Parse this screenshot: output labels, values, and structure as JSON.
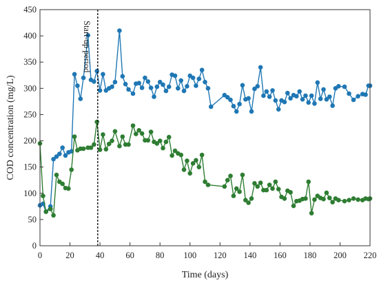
{
  "chart_data": {
    "type": "line",
    "title": "",
    "xlabel": "Time (days)",
    "ylabel": "COD concentration (mg/L)",
    "xlim": [
      0,
      220
    ],
    "ylim": [
      0,
      450
    ],
    "xticks": [
      0,
      20,
      40,
      60,
      80,
      100,
      120,
      140,
      160,
      180,
      200,
      220
    ],
    "yticks": [
      0,
      50,
      100,
      150,
      200,
      250,
      300,
      350,
      400,
      450
    ],
    "grid": false,
    "legend": "none",
    "annotations": [
      {
        "type": "vline",
        "x": 38.5,
        "style": "dashed",
        "text": "Start-up period"
      }
    ],
    "series": [
      {
        "color": "#1f77b4",
        "marker": "circle",
        "points": [
          [
            0,
            77
          ],
          [
            2,
            80
          ],
          [
            4,
            65
          ],
          [
            7,
            75
          ],
          [
            9,
            165
          ],
          [
            11,
            170
          ],
          [
            13,
            175
          ],
          [
            15,
            187
          ],
          [
            17,
            172
          ],
          [
            19,
            178
          ],
          [
            21,
            180
          ],
          [
            23,
            327
          ],
          [
            25,
            305
          ],
          [
            27,
            280
          ],
          [
            29,
            320
          ],
          [
            32,
            401
          ],
          [
            34,
            316
          ],
          [
            36,
            313
          ],
          [
            38,
            333
          ],
          [
            40,
            296
          ],
          [
            42,
            327
          ],
          [
            44,
            296
          ],
          [
            46,
            300
          ],
          [
            48,
            303
          ],
          [
            50,
            312
          ],
          [
            53,
            410
          ],
          [
            55,
            323
          ],
          [
            57,
            308
          ],
          [
            59,
            298
          ],
          [
            62,
            290
          ],
          [
            64,
            309
          ],
          [
            66,
            310
          ],
          [
            68,
            301
          ],
          [
            70,
            320
          ],
          [
            72,
            313
          ],
          [
            74,
            301
          ],
          [
            76,
            284
          ],
          [
            78,
            303
          ],
          [
            80,
            312
          ],
          [
            82,
            307
          ],
          [
            84,
            295
          ],
          [
            86,
            303
          ],
          [
            88,
            326
          ],
          [
            90,
            324
          ],
          [
            92,
            300
          ],
          [
            94,
            315
          ],
          [
            96,
            295
          ],
          [
            98,
            304
          ],
          [
            100,
            324
          ],
          [
            102,
            320
          ],
          [
            104,
            305
          ],
          [
            106,
            318
          ],
          [
            108,
            335
          ],
          [
            110,
            312
          ],
          [
            112,
            300
          ],
          [
            114,
            265
          ],
          [
            123,
            287
          ],
          [
            125,
            283
          ],
          [
            127,
            278
          ],
          [
            129,
            266
          ],
          [
            131,
            256
          ],
          [
            133,
            270
          ],
          [
            135,
            306
          ],
          [
            137,
            279
          ],
          [
            139,
            281
          ],
          [
            141,
            256
          ],
          [
            143,
            299
          ],
          [
            145,
            304
          ],
          [
            147,
            340
          ],
          [
            149,
            286
          ],
          [
            151,
            294
          ],
          [
            153,
            284
          ],
          [
            155,
            296
          ],
          [
            157,
            277
          ],
          [
            159,
            260
          ],
          [
            161,
            277
          ],
          [
            163,
            274
          ],
          [
            165,
            291
          ],
          [
            167,
            281
          ],
          [
            169,
            287
          ],
          [
            171,
            285
          ],
          [
            173,
            294
          ],
          [
            175,
            279
          ],
          [
            177,
            286
          ],
          [
            179,
            273
          ],
          [
            181,
            286
          ],
          [
            183,
            271
          ],
          [
            185,
            311
          ],
          [
            187,
            280
          ],
          [
            189,
            298
          ],
          [
            191,
            279
          ],
          [
            193,
            284
          ],
          [
            195,
            267
          ],
          [
            197,
            300
          ],
          [
            199,
            304
          ],
          [
            203,
            303
          ],
          [
            206,
            290
          ],
          [
            209,
            278
          ],
          [
            212,
            285
          ],
          [
            215,
            289
          ],
          [
            217,
            288
          ],
          [
            219,
            305
          ],
          [
            220,
            305
          ]
        ]
      },
      {
        "color": "#2e7d32",
        "marker": "circle",
        "points": [
          [
            0,
            195
          ],
          [
            2,
            95
          ],
          [
            4,
            65
          ],
          [
            7,
            70
          ],
          [
            9,
            58
          ],
          [
            11,
            135
          ],
          [
            13,
            122
          ],
          [
            15,
            118
          ],
          [
            17,
            110
          ],
          [
            19,
            109
          ],
          [
            21,
            145
          ],
          [
            23,
            208
          ],
          [
            25,
            182
          ],
          [
            27,
            185
          ],
          [
            29,
            185
          ],
          [
            32,
            187
          ],
          [
            34,
            187
          ],
          [
            36,
            193
          ],
          [
            38,
            236
          ],
          [
            40,
            183
          ],
          [
            42,
            212
          ],
          [
            44,
            184
          ],
          [
            46,
            194
          ],
          [
            48,
            200
          ],
          [
            50,
            218
          ],
          [
            53,
            190
          ],
          [
            55,
            208
          ],
          [
            57,
            193
          ],
          [
            59,
            193
          ],
          [
            62,
            229
          ],
          [
            64,
            213
          ],
          [
            66,
            220
          ],
          [
            68,
            214
          ],
          [
            70,
            201
          ],
          [
            72,
            201
          ],
          [
            74,
            217
          ],
          [
            76,
            198
          ],
          [
            78,
            195
          ],
          [
            80,
            200
          ],
          [
            82,
            186
          ],
          [
            84,
            198
          ],
          [
            86,
            207
          ],
          [
            88,
            172
          ],
          [
            90,
            181
          ],
          [
            92,
            176
          ],
          [
            94,
            173
          ],
          [
            96,
            145
          ],
          [
            98,
            162
          ],
          [
            100,
            138
          ],
          [
            102,
            157
          ],
          [
            104,
            163
          ],
          [
            106,
            150
          ],
          [
            108,
            173
          ],
          [
            110,
            122
          ],
          [
            112,
            116
          ],
          [
            123,
            113
          ],
          [
            125,
            125
          ],
          [
            127,
            133
          ],
          [
            129,
            95
          ],
          [
            131,
            109
          ],
          [
            133,
            103
          ],
          [
            135,
            135
          ],
          [
            137,
            87
          ],
          [
            139,
            82
          ],
          [
            141,
            90
          ],
          [
            143,
            119
          ],
          [
            145,
            113
          ],
          [
            147,
            120
          ],
          [
            149,
            106
          ],
          [
            151,
            106
          ],
          [
            153,
            116
          ],
          [
            155,
            109
          ],
          [
            157,
            122
          ],
          [
            159,
            108
          ],
          [
            161,
            93
          ],
          [
            163,
            90
          ],
          [
            165,
            105
          ],
          [
            167,
            102
          ],
          [
            169,
            76
          ],
          [
            171,
            85
          ],
          [
            173,
            86
          ],
          [
            175,
            89
          ],
          [
            177,
            90
          ],
          [
            179,
            122
          ],
          [
            181,
            62
          ],
          [
            183,
            88
          ],
          [
            185,
            95
          ],
          [
            187,
            91
          ],
          [
            189,
            89
          ],
          [
            191,
            101
          ],
          [
            193,
            91
          ],
          [
            195,
            83
          ],
          [
            197,
            90
          ],
          [
            199,
            87
          ],
          [
            203,
            85
          ],
          [
            206,
            87
          ],
          [
            209,
            90
          ],
          [
            212,
            88
          ],
          [
            215,
            87
          ],
          [
            217,
            90
          ],
          [
            219,
            89
          ],
          [
            220,
            90
          ]
        ]
      }
    ]
  }
}
